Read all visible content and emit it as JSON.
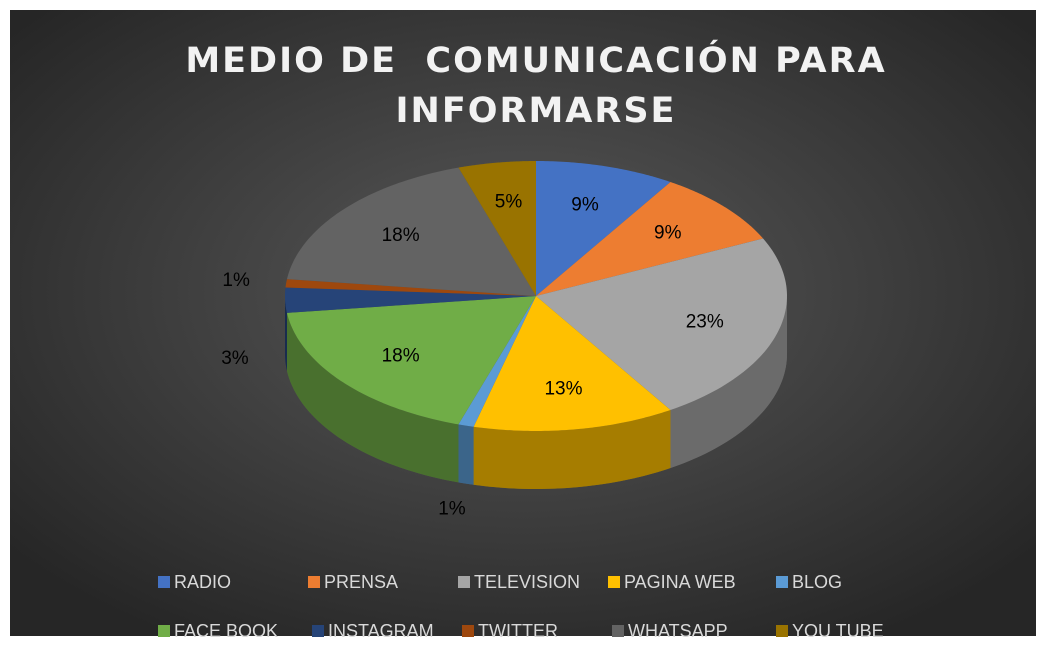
{
  "chart_data": {
    "type": "pie3d",
    "title": "MEDIO DE  COMUNICACIÓN PARA INFORMARSE",
    "categories": [
      "RADIO",
      "PRENSA",
      "TELEVISION",
      "PAGINA WEB",
      "BLOG",
      "FACE BOOK",
      "INSTAGRAM",
      "TWITTER",
      "WHATSAPP",
      "YOU TUBE"
    ],
    "values": [
      9,
      9,
      23,
      13,
      1,
      18,
      3,
      1,
      18,
      5
    ],
    "value_labels": [
      "9%",
      "9%",
      "23%",
      "13%",
      "1%",
      "18%",
      "3%",
      "1%",
      "18%",
      "5%"
    ],
    "colors": [
      "#4472c4",
      "#ed7d31",
      "#a5a5a5",
      "#ffc000",
      "#5b9bd5",
      "#70ad47",
      "#264478",
      "#9e480e",
      "#636363",
      "#997300"
    ]
  }
}
